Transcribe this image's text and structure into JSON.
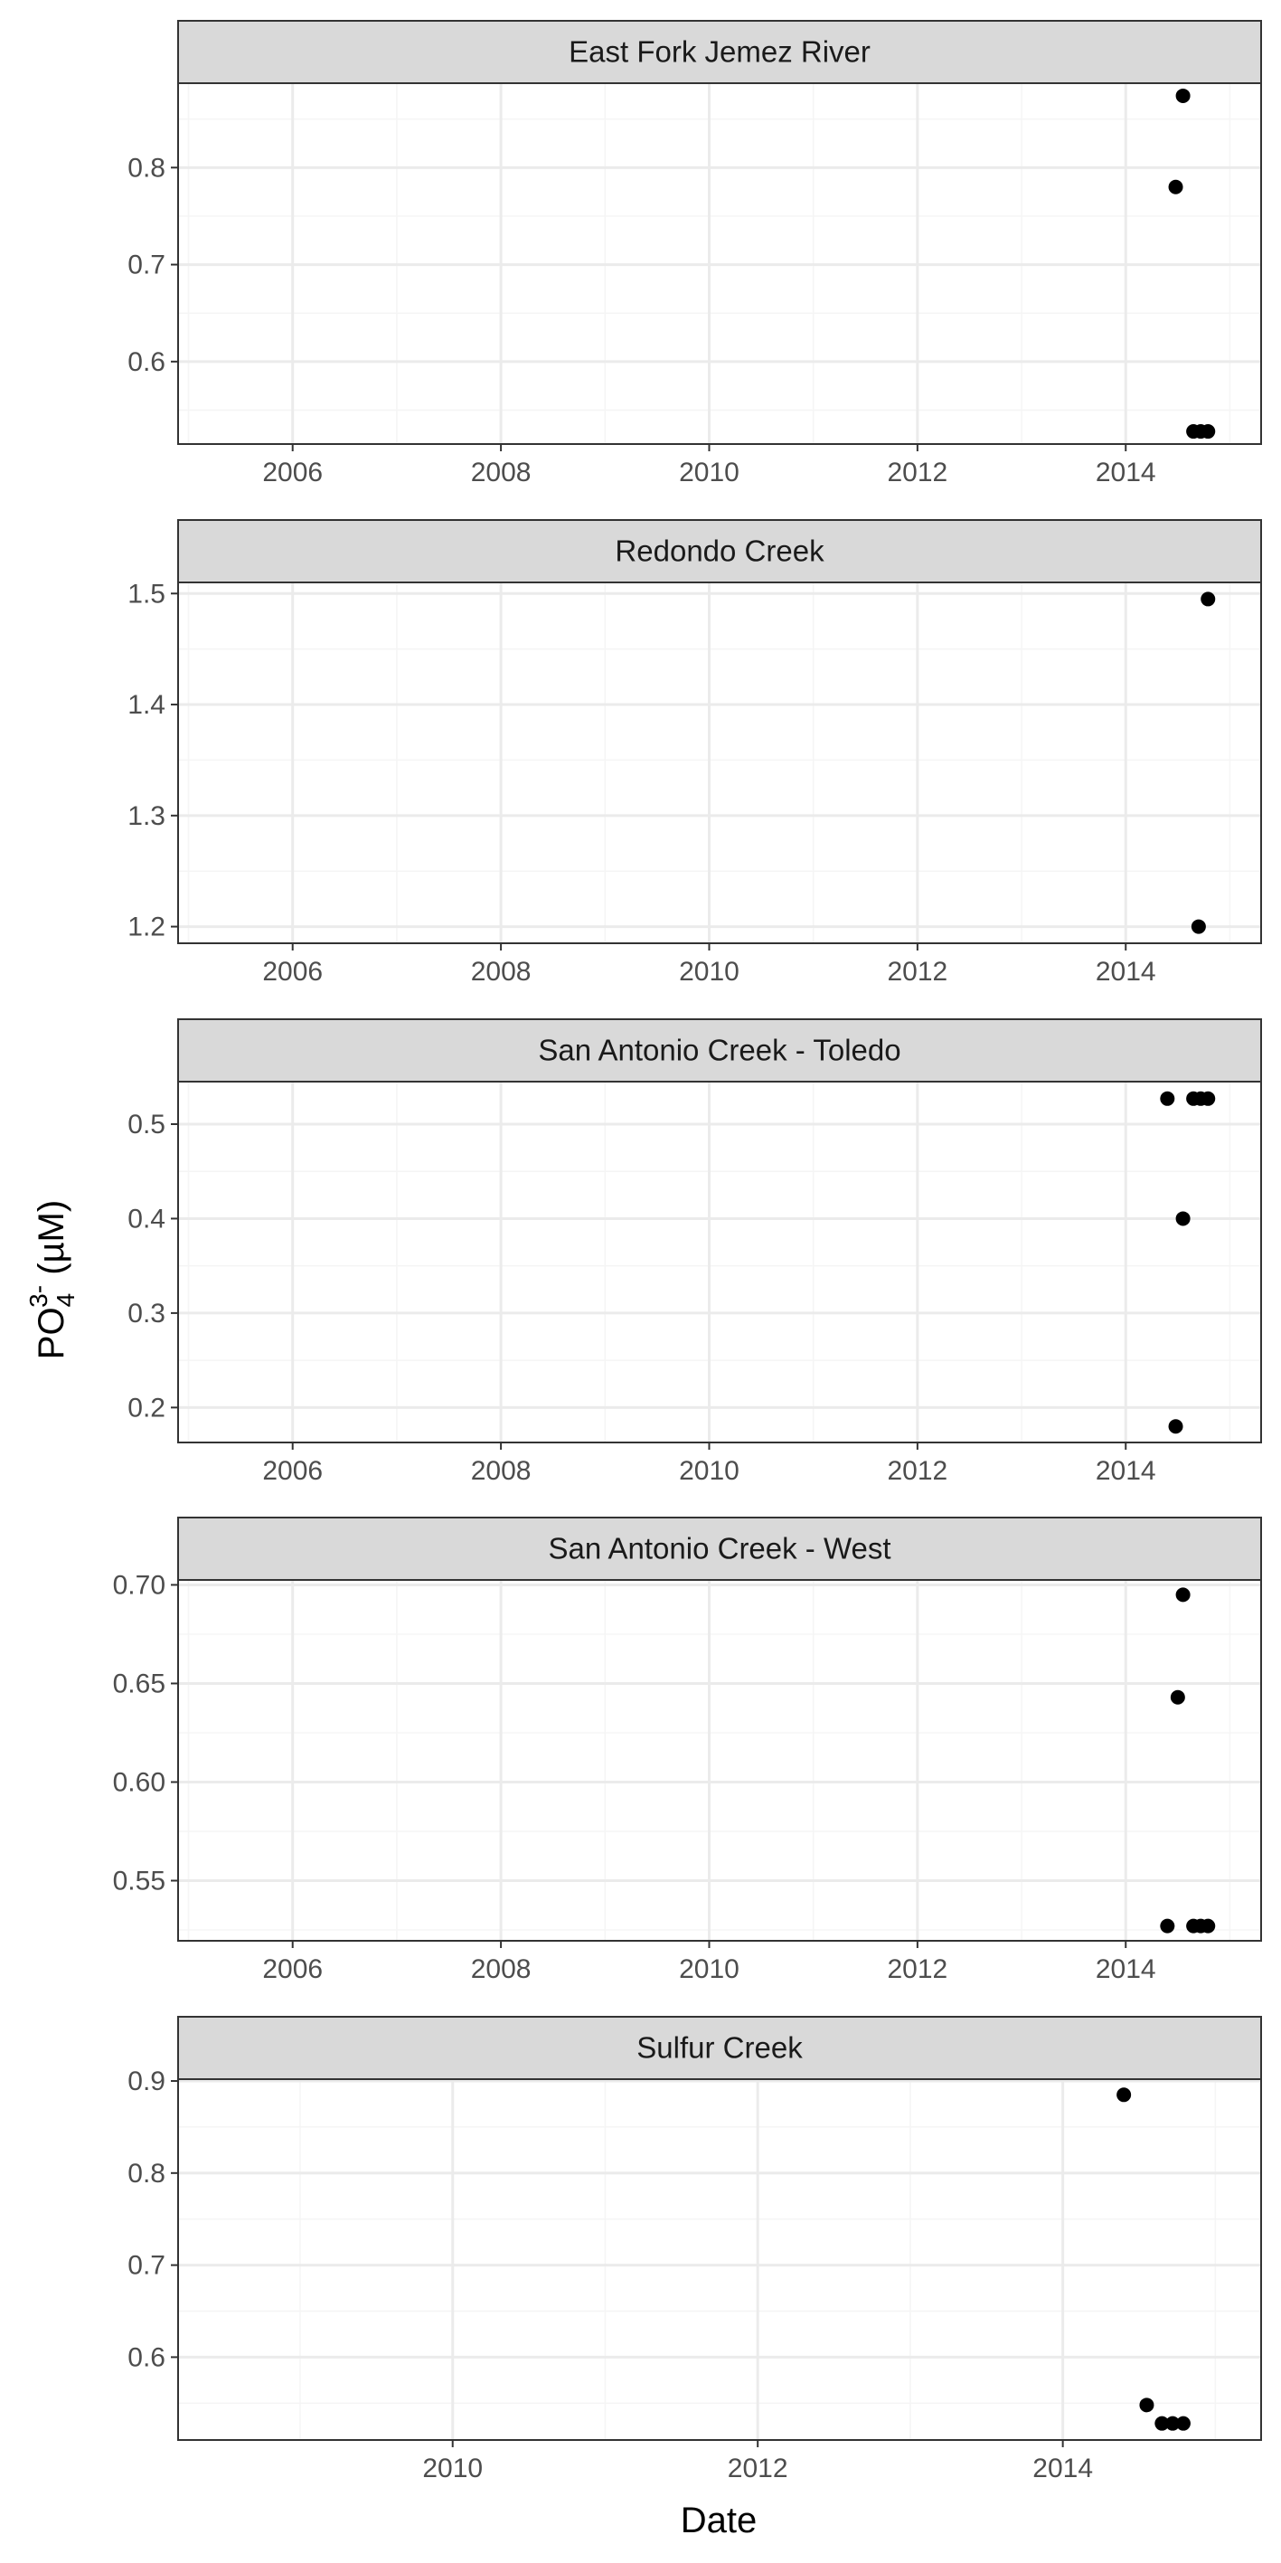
{
  "figure": {
    "xlabel": "Date",
    "ylabel": "PO43- (µM)",
    "ylabel_base": "PO",
    "ylabel_sub": "4",
    "ylabel_sup": "3-",
    "ylabel_unit": " (µM)"
  },
  "colors": {
    "strip_fill": "#d9d9d9",
    "strip_border": "#333333",
    "panel_border": "#333333",
    "grid_major": "#ebebeb",
    "grid_minor": "#f5f5f5",
    "point": "#000000"
  },
  "chart_data": [
    {
      "type": "scatter",
      "title": "East Fork Jemez River",
      "xlim": [
        2004.9,
        2015.3
      ],
      "ylim": [
        0.515,
        0.887
      ],
      "x_ticks": [
        2006,
        2008,
        2010,
        2012,
        2014
      ],
      "x_tick_labels": [
        "2006",
        "2008",
        "2010",
        "2012",
        "2014"
      ],
      "y_ticks": [
        0.6,
        0.7,
        0.8
      ],
      "y_tick_labels": [
        "0.6",
        "0.7",
        "0.8"
      ],
      "grid": true,
      "points": [
        {
          "x": 2014.55,
          "y": 0.874
        },
        {
          "x": 2014.48,
          "y": 0.78
        },
        {
          "x": 2014.65,
          "y": 0.528
        },
        {
          "x": 2014.72,
          "y": 0.528
        },
        {
          "x": 2014.79,
          "y": 0.528
        }
      ]
    },
    {
      "type": "scatter",
      "title": "Redondo Creek",
      "xlim": [
        2004.9,
        2015.3
      ],
      "ylim": [
        1.185,
        1.51
      ],
      "x_ticks": [
        2006,
        2008,
        2010,
        2012,
        2014
      ],
      "x_tick_labels": [
        "2006",
        "2008",
        "2010",
        "2012",
        "2014"
      ],
      "y_ticks": [
        1.2,
        1.3,
        1.4,
        1.5
      ],
      "y_tick_labels": [
        "1.2",
        "1.3",
        "1.4",
        "1.5"
      ],
      "grid": true,
      "points": [
        {
          "x": 2014.79,
          "y": 1.495
        },
        {
          "x": 2014.7,
          "y": 1.2
        }
      ]
    },
    {
      "type": "scatter",
      "title": "San Antonio Creek - Toledo",
      "xlim": [
        2004.9,
        2015.3
      ],
      "ylim": [
        0.163,
        0.545
      ],
      "x_ticks": [
        2006,
        2008,
        2010,
        2012,
        2014
      ],
      "x_tick_labels": [
        "2006",
        "2008",
        "2010",
        "2012",
        "2014"
      ],
      "y_ticks": [
        0.2,
        0.3,
        0.4,
        0.5
      ],
      "y_tick_labels": [
        "0.2",
        "0.3",
        "0.4",
        "0.5"
      ],
      "grid": true,
      "points": [
        {
          "x": 2014.4,
          "y": 0.527
        },
        {
          "x": 2014.65,
          "y": 0.527
        },
        {
          "x": 2014.72,
          "y": 0.527
        },
        {
          "x": 2014.79,
          "y": 0.527
        },
        {
          "x": 2014.55,
          "y": 0.4
        },
        {
          "x": 2014.48,
          "y": 0.18
        }
      ]
    },
    {
      "type": "scatter",
      "title": "San Antonio Creek - West",
      "xlim": [
        2004.9,
        2015.3
      ],
      "ylim": [
        0.5195,
        0.7025
      ],
      "x_ticks": [
        2006,
        2008,
        2010,
        2012,
        2014
      ],
      "x_tick_labels": [
        "2006",
        "2008",
        "2010",
        "2012",
        "2014"
      ],
      "y_ticks": [
        0.55,
        0.6,
        0.65,
        0.7
      ],
      "y_tick_labels": [
        "0.55",
        "0.60",
        "0.65",
        "0.70"
      ],
      "grid": true,
      "points": [
        {
          "x": 2014.55,
          "y": 0.695
        },
        {
          "x": 2014.5,
          "y": 0.643
        },
        {
          "x": 2014.4,
          "y": 0.527
        },
        {
          "x": 2014.65,
          "y": 0.527
        },
        {
          "x": 2014.72,
          "y": 0.527
        },
        {
          "x": 2014.79,
          "y": 0.527
        }
      ]
    },
    {
      "type": "scatter",
      "title": "Sulfur Creek",
      "xlim": [
        2008.2,
        2015.3
      ],
      "ylim": [
        0.51,
        0.902
      ],
      "x_ticks": [
        2010,
        2012,
        2014
      ],
      "x_tick_labels": [
        "2010",
        "2012",
        "2014"
      ],
      "y_ticks": [
        0.6,
        0.7,
        0.8,
        0.9
      ],
      "y_tick_labels": [
        "0.6",
        "0.7",
        "0.8",
        "0.9"
      ],
      "grid": true,
      "points": [
        {
          "x": 2014.4,
          "y": 0.885
        },
        {
          "x": 2014.55,
          "y": 0.548
        },
        {
          "x": 2014.65,
          "y": 0.528
        },
        {
          "x": 2014.72,
          "y": 0.528
        },
        {
          "x": 2014.79,
          "y": 0.528
        }
      ]
    }
  ]
}
